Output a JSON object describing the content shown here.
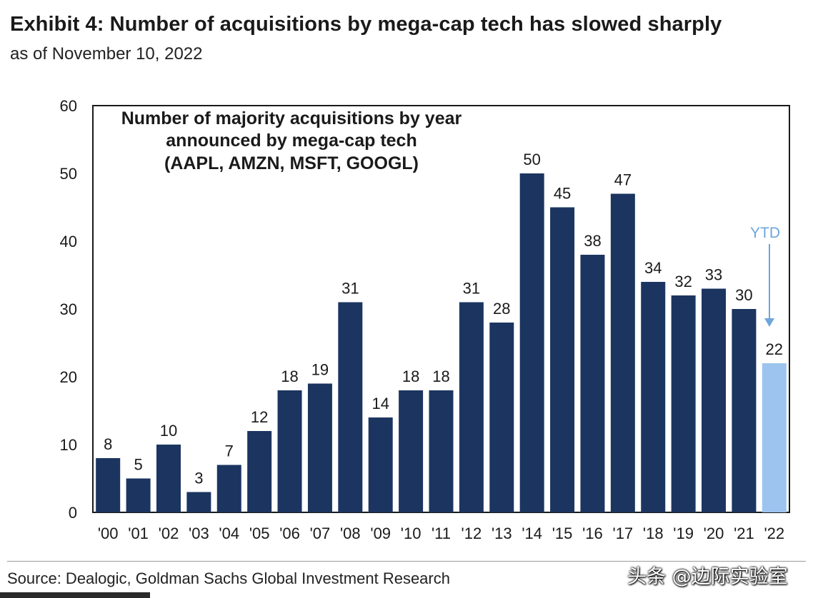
{
  "header": {
    "title": "Exhibit 4: Number of acquisitions by mega-cap tech has slowed sharply",
    "subtitle": "as of November 10, 2022"
  },
  "footer": {
    "source": "Source: Dealogic, Goldman Sachs Global Investment Research",
    "watermark": "头条 @边际实验室"
  },
  "chart_data": {
    "type": "bar",
    "title_lines": [
      "Number of majority acquisitions by year",
      "announced by mega-cap tech",
      "(AAPL, AMZN, MSFT, GOOGL)"
    ],
    "categories": [
      "'00",
      "'01",
      "'02",
      "'03",
      "'04",
      "'05",
      "'06",
      "'07",
      "'08",
      "'09",
      "'10",
      "'11",
      "'12",
      "'13",
      "'14",
      "'15",
      "'16",
      "'17",
      "'18",
      "'19",
      "'20",
      "'21",
      "'22"
    ],
    "values": [
      8,
      5,
      10,
      3,
      7,
      12,
      18,
      19,
      31,
      14,
      18,
      18,
      31,
      28,
      50,
      45,
      38,
      47,
      34,
      32,
      33,
      30,
      22
    ],
    "data_labels": [
      "8",
      "5",
      "10",
      "3",
      "7",
      "12",
      "18",
      "19",
      "31",
      "14",
      "18",
      "18",
      "31",
      "28",
      "50",
      "45",
      "38",
      "47",
      "34",
      "32",
      "33",
      "30",
      "22"
    ],
    "yticks": [
      "0",
      "10",
      "20",
      "30",
      "40",
      "50",
      "60"
    ],
    "ylim": [
      0,
      60
    ],
    "annotation": "YTD",
    "highlight_category": "'22",
    "colors": {
      "bar": "#1b3560",
      "highlight": "#9cc4ee",
      "annotation": "#6ea6dc",
      "text": "#1a1a1a"
    },
    "grid": false
  }
}
